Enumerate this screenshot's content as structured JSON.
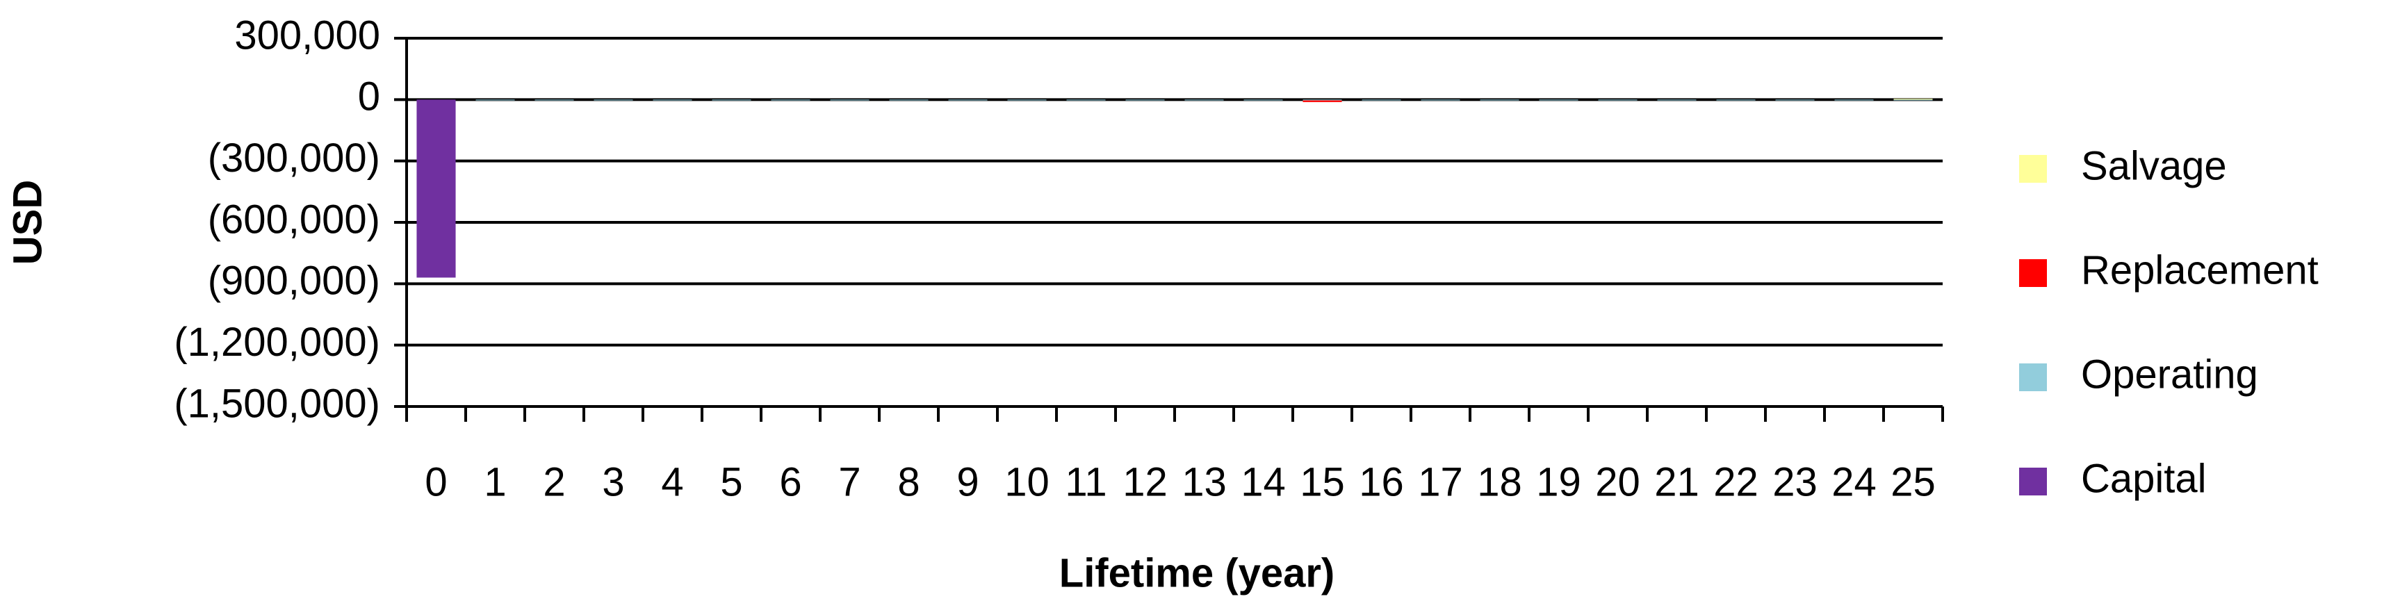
{
  "chart_data": {
    "type": "stacked_bar",
    "x_label": "Lifetime (year)",
    "y_label": "USD",
    "categories": [
      "0",
      "1",
      "2",
      "3",
      "4",
      "5",
      "6",
      "7",
      "8",
      "9",
      "10",
      "11",
      "12",
      "13",
      "14",
      "15",
      "16",
      "17",
      "18",
      "19",
      "20",
      "21",
      "22",
      "23",
      "24",
      "25"
    ],
    "series": [
      {
        "name": "Capital",
        "color": "#7030a0",
        "values": [
          -870000,
          0,
          0,
          0,
          0,
          0,
          0,
          0,
          0,
          0,
          0,
          0,
          0,
          0,
          0,
          0,
          0,
          0,
          0,
          0,
          0,
          0,
          0,
          0,
          0,
          0
        ]
      },
      {
        "name": "Operating",
        "color": "#92cddc",
        "values": [
          0,
          -4000,
          -4000,
          -4000,
          -4000,
          -4000,
          -4000,
          -4000,
          -4000,
          -4000,
          -4000,
          -4000,
          -4000,
          -4000,
          -4000,
          -4000,
          -4000,
          -4000,
          -4000,
          -4000,
          -4000,
          -4000,
          -4000,
          -4000,
          -4000,
          -4000
        ]
      },
      {
        "name": "Replacement",
        "color": "#ff0000",
        "values": [
          0,
          0,
          0,
          0,
          0,
          0,
          0,
          0,
          0,
          0,
          0,
          0,
          0,
          0,
          0,
          -8000,
          0,
          0,
          0,
          0,
          0,
          0,
          0,
          0,
          0,
          0
        ]
      },
      {
        "name": "Salvage",
        "color": "#ffff99",
        "values": [
          0,
          0,
          0,
          0,
          0,
          0,
          0,
          0,
          0,
          0,
          0,
          0,
          0,
          0,
          0,
          0,
          0,
          0,
          0,
          0,
          0,
          0,
          0,
          0,
          0,
          4000
        ]
      }
    ],
    "ylim": [
      -1500000,
      300000
    ],
    "yticks": [
      {
        "value": 300000,
        "label": "300,000"
      },
      0,
      {
        "value": -300000,
        "label": "(300,000)"
      },
      {
        "value": -600000,
        "label": "(600,000)"
      },
      {
        "value": -900000,
        "label": "(900,000)"
      },
      {
        "value": -1200000,
        "label": "(1,200,000)"
      },
      {
        "value": -1500000,
        "label": "(1,500,000)"
      }
    ],
    "grid": true,
    "legend": "right"
  }
}
